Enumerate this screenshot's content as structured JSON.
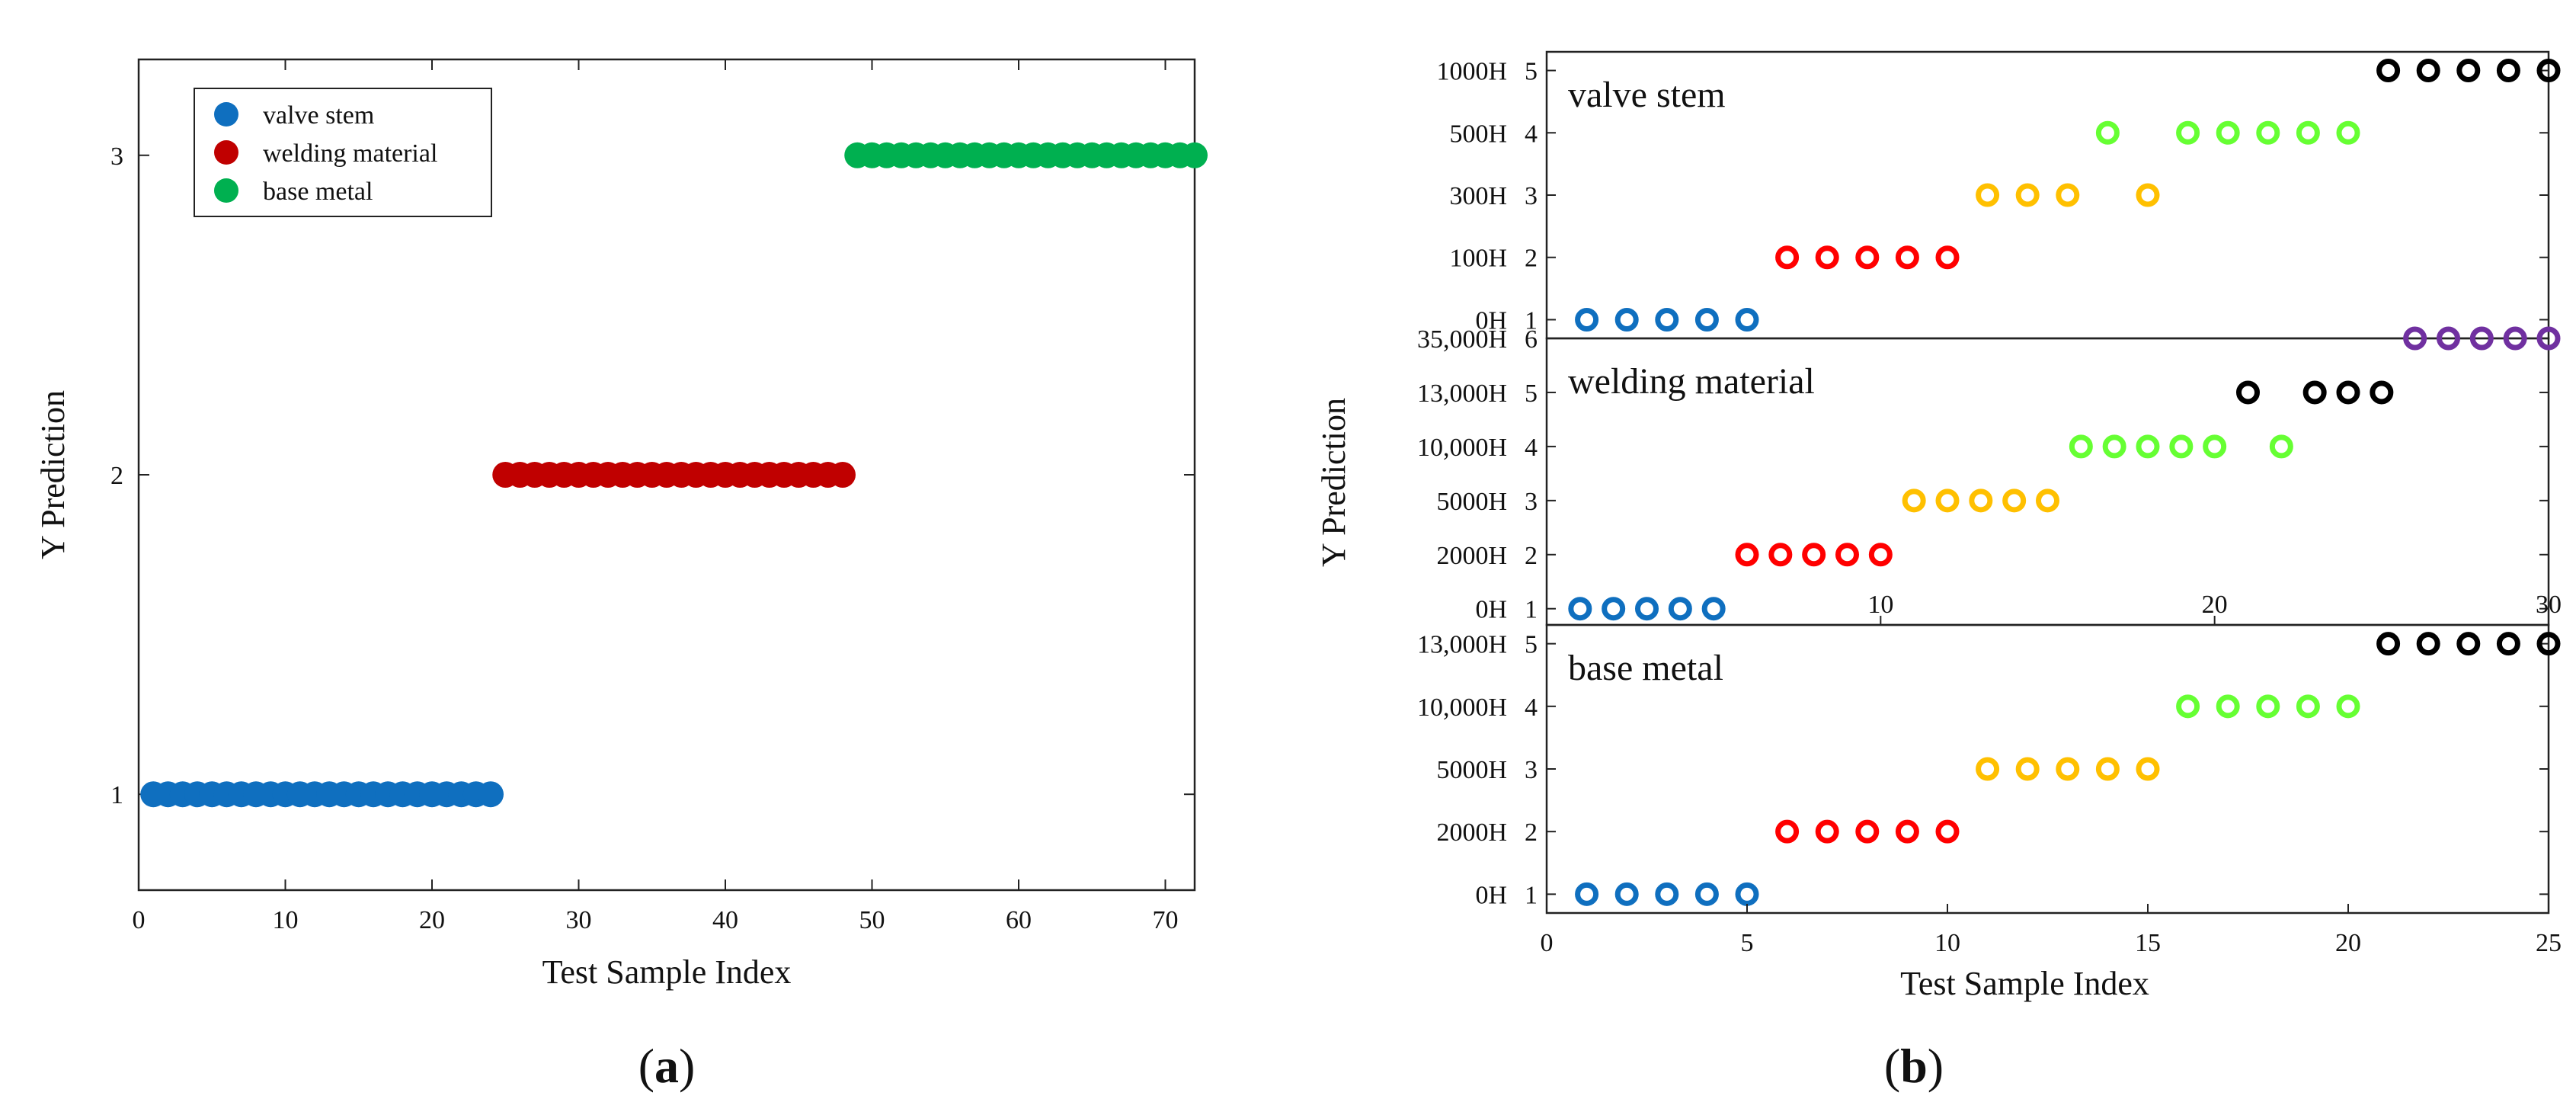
{
  "figure_captions": {
    "a": {
      "open": "(",
      "letter": "a",
      "close": ")"
    },
    "b": {
      "open": "(",
      "letter": "b",
      "close": ")"
    }
  },
  "chart_data": [
    {
      "id": "a",
      "type": "scatter",
      "title": "",
      "xlabel": "Test Sample Index",
      "ylabel": "Y Prediction",
      "xlim": [
        0,
        72
      ],
      "ylim": [
        0.7,
        3.3
      ],
      "xticks": [
        0,
        10,
        20,
        30,
        40,
        50,
        60,
        70
      ],
      "yticks": [
        1,
        2,
        3
      ],
      "grid": false,
      "legend": "top-left",
      "series": [
        {
          "name": "valve stem",
          "color": "#0f6fbf",
          "marker": "filled-circle",
          "x": [
            1,
            2,
            3,
            4,
            5,
            6,
            7,
            8,
            9,
            10,
            11,
            12,
            13,
            14,
            15,
            16,
            17,
            18,
            19,
            20,
            21,
            22,
            23,
            24
          ],
          "y": [
            1,
            1,
            1,
            1,
            1,
            1,
            1,
            1,
            1,
            1,
            1,
            1,
            1,
            1,
            1,
            1,
            1,
            1,
            1,
            1,
            1,
            1,
            1,
            1
          ]
        },
        {
          "name": "welding material",
          "color": "#c00000",
          "marker": "filled-circle",
          "x": [
            25,
            26,
            27,
            28,
            29,
            30,
            31,
            32,
            33,
            34,
            35,
            36,
            37,
            38,
            39,
            40,
            41,
            42,
            43,
            44,
            45,
            46,
            47,
            48
          ],
          "y": [
            2,
            2,
            2,
            2,
            2,
            2,
            2,
            2,
            2,
            2,
            2,
            2,
            2,
            2,
            2,
            2,
            2,
            2,
            2,
            2,
            2,
            2,
            2,
            2
          ]
        },
        {
          "name": "base metal",
          "color": "#00b050",
          "marker": "filled-circle",
          "x": [
            49,
            50,
            51,
            52,
            53,
            54,
            55,
            56,
            57,
            58,
            59,
            60,
            61,
            62,
            63,
            64,
            65,
            66,
            67,
            68,
            69,
            70,
            71,
            72
          ],
          "y": [
            3,
            3,
            3,
            3,
            3,
            3,
            3,
            3,
            3,
            3,
            3,
            3,
            3,
            3,
            3,
            3,
            3,
            3,
            3,
            3,
            3,
            3,
            3,
            3
          ]
        }
      ]
    },
    {
      "id": "b-valve-stem",
      "type": "scatter",
      "title": "valve stem",
      "ylim": [
        0.7,
        5.3
      ],
      "xlim": [
        0,
        25
      ],
      "yticks": [
        1,
        2,
        3,
        4,
        5
      ],
      "yticklabels_left": [
        "0H",
        "100H",
        "300H",
        "500H",
        "1000H"
      ],
      "marker": "open-circle",
      "points": [
        {
          "x": 1,
          "y": 1,
          "color": "#0f6fbf"
        },
        {
          "x": 2,
          "y": 1,
          "color": "#0f6fbf"
        },
        {
          "x": 3,
          "y": 1,
          "color": "#0f6fbf"
        },
        {
          "x": 4,
          "y": 1,
          "color": "#0f6fbf"
        },
        {
          "x": 5,
          "y": 1,
          "color": "#0f6fbf"
        },
        {
          "x": 6,
          "y": 2,
          "color": "#ff0000"
        },
        {
          "x": 7,
          "y": 2,
          "color": "#ff0000"
        },
        {
          "x": 8,
          "y": 2,
          "color": "#ff0000"
        },
        {
          "x": 9,
          "y": 2,
          "color": "#ff0000"
        },
        {
          "x": 10,
          "y": 2,
          "color": "#ff0000"
        },
        {
          "x": 11,
          "y": 3,
          "color": "#ffc000"
        },
        {
          "x": 12,
          "y": 3,
          "color": "#ffc000"
        },
        {
          "x": 13,
          "y": 3,
          "color": "#ffc000"
        },
        {
          "x": 15,
          "y": 3,
          "color": "#ffc000"
        },
        {
          "x": 14,
          "y": 4,
          "color": "#66ff33"
        },
        {
          "x": 16,
          "y": 4,
          "color": "#66ff33"
        },
        {
          "x": 17,
          "y": 4,
          "color": "#66ff33"
        },
        {
          "x": 18,
          "y": 4,
          "color": "#66ff33"
        },
        {
          "x": 19,
          "y": 4,
          "color": "#66ff33"
        },
        {
          "x": 20,
          "y": 4,
          "color": "#66ff33"
        },
        {
          "x": 21,
          "y": 5,
          "color": "#000000"
        },
        {
          "x": 22,
          "y": 5,
          "color": "#000000"
        },
        {
          "x": 23,
          "y": 5,
          "color": "#000000"
        },
        {
          "x": 24,
          "y": 5,
          "color": "#000000"
        },
        {
          "x": 25,
          "y": 5,
          "color": "#000000"
        }
      ]
    },
    {
      "id": "b-welding-material",
      "type": "scatter",
      "title": "welding material",
      "ylim": [
        0.7,
        6.0
      ],
      "xlim": [
        0,
        30
      ],
      "xticks": [
        10,
        20,
        30
      ],
      "yticks": [
        1,
        2,
        3,
        4,
        5,
        6
      ],
      "yticklabels_left": [
        "0H",
        "2000H",
        "5000H",
        "10,000H",
        "13,000H",
        "35,000H"
      ],
      "marker": "open-circle",
      "points": [
        {
          "x": 1,
          "y": 1,
          "color": "#0f6fbf"
        },
        {
          "x": 2,
          "y": 1,
          "color": "#0f6fbf"
        },
        {
          "x": 3,
          "y": 1,
          "color": "#0f6fbf"
        },
        {
          "x": 4,
          "y": 1,
          "color": "#0f6fbf"
        },
        {
          "x": 5,
          "y": 1,
          "color": "#0f6fbf"
        },
        {
          "x": 6,
          "y": 2,
          "color": "#ff0000"
        },
        {
          "x": 7,
          "y": 2,
          "color": "#ff0000"
        },
        {
          "x": 8,
          "y": 2,
          "color": "#ff0000"
        },
        {
          "x": 9,
          "y": 2,
          "color": "#ff0000"
        },
        {
          "x": 10,
          "y": 2,
          "color": "#ff0000"
        },
        {
          "x": 11,
          "y": 3,
          "color": "#ffc000"
        },
        {
          "x": 12,
          "y": 3,
          "color": "#ffc000"
        },
        {
          "x": 13,
          "y": 3,
          "color": "#ffc000"
        },
        {
          "x": 14,
          "y": 3,
          "color": "#ffc000"
        },
        {
          "x": 15,
          "y": 3,
          "color": "#ffc000"
        },
        {
          "x": 16,
          "y": 4,
          "color": "#66ff33"
        },
        {
          "x": 17,
          "y": 4,
          "color": "#66ff33"
        },
        {
          "x": 18,
          "y": 4,
          "color": "#66ff33"
        },
        {
          "x": 19,
          "y": 4,
          "color": "#66ff33"
        },
        {
          "x": 20,
          "y": 4,
          "color": "#66ff33"
        },
        {
          "x": 22,
          "y": 4,
          "color": "#66ff33"
        },
        {
          "x": 21,
          "y": 5,
          "color": "#000000"
        },
        {
          "x": 23,
          "y": 5,
          "color": "#000000"
        },
        {
          "x": 24,
          "y": 5,
          "color": "#000000"
        },
        {
          "x": 25,
          "y": 5,
          "color": "#000000"
        },
        {
          "x": 26,
          "y": 6,
          "color": "#7030a0"
        },
        {
          "x": 27,
          "y": 6,
          "color": "#7030a0"
        },
        {
          "x": 28,
          "y": 6,
          "color": "#7030a0"
        },
        {
          "x": 29,
          "y": 6,
          "color": "#7030a0"
        },
        {
          "x": 30,
          "y": 6,
          "color": "#7030a0"
        }
      ]
    },
    {
      "id": "b-base-metal",
      "type": "scatter",
      "title": "base metal",
      "xlabel": "Test Sample Index",
      "ylabel": "Y Prediction",
      "ylim": [
        0.7,
        5.3
      ],
      "xlim": [
        0,
        25
      ],
      "xticks": [
        0,
        5,
        10,
        15,
        20,
        25
      ],
      "yticks": [
        1,
        2,
        3,
        4,
        5
      ],
      "yticklabels_left": [
        "0H",
        "2000H",
        "5000H",
        "10,000H",
        "13,000H"
      ],
      "marker": "open-circle",
      "points": [
        {
          "x": 1,
          "y": 1,
          "color": "#0f6fbf"
        },
        {
          "x": 2,
          "y": 1,
          "color": "#0f6fbf"
        },
        {
          "x": 3,
          "y": 1,
          "color": "#0f6fbf"
        },
        {
          "x": 4,
          "y": 1,
          "color": "#0f6fbf"
        },
        {
          "x": 5,
          "y": 1,
          "color": "#0f6fbf"
        },
        {
          "x": 6,
          "y": 2,
          "color": "#ff0000"
        },
        {
          "x": 7,
          "y": 2,
          "color": "#ff0000"
        },
        {
          "x": 8,
          "y": 2,
          "color": "#ff0000"
        },
        {
          "x": 9,
          "y": 2,
          "color": "#ff0000"
        },
        {
          "x": 10,
          "y": 2,
          "color": "#ff0000"
        },
        {
          "x": 11,
          "y": 3,
          "color": "#ffc000"
        },
        {
          "x": 12,
          "y": 3,
          "color": "#ffc000"
        },
        {
          "x": 13,
          "y": 3,
          "color": "#ffc000"
        },
        {
          "x": 14,
          "y": 3,
          "color": "#ffc000"
        },
        {
          "x": 15,
          "y": 3,
          "color": "#ffc000"
        },
        {
          "x": 16,
          "y": 4,
          "color": "#66ff33"
        },
        {
          "x": 17,
          "y": 4,
          "color": "#66ff33"
        },
        {
          "x": 18,
          "y": 4,
          "color": "#66ff33"
        },
        {
          "x": 19,
          "y": 4,
          "color": "#66ff33"
        },
        {
          "x": 20,
          "y": 4,
          "color": "#66ff33"
        },
        {
          "x": 21,
          "y": 5,
          "color": "#000000"
        },
        {
          "x": 22,
          "y": 5,
          "color": "#000000"
        },
        {
          "x": 23,
          "y": 5,
          "color": "#000000"
        },
        {
          "x": 24,
          "y": 5,
          "color": "#000000"
        },
        {
          "x": 25,
          "y": 5,
          "color": "#000000"
        }
      ]
    }
  ]
}
